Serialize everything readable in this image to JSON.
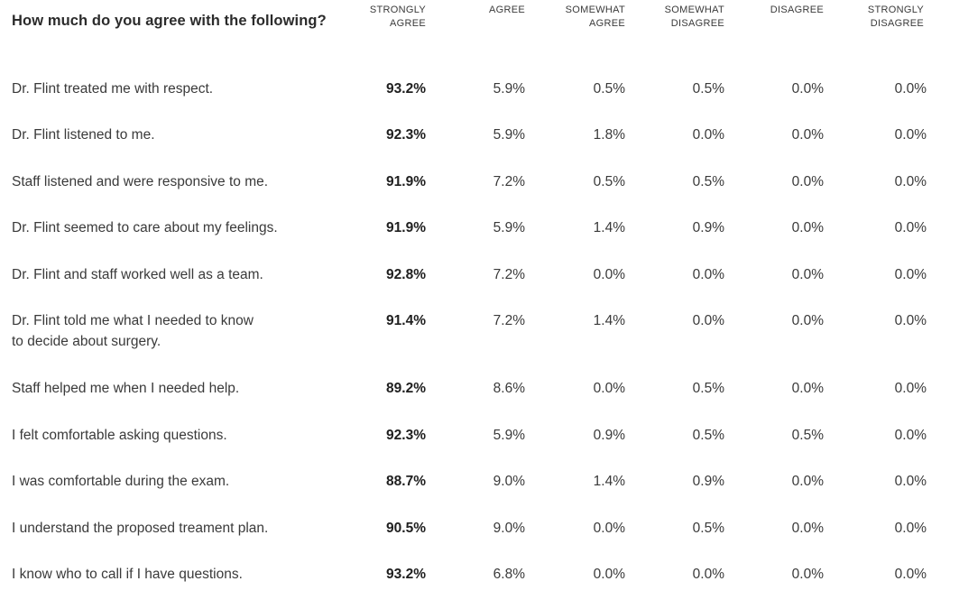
{
  "question": "How much do you agree with the following?",
  "columns": [
    "STRONGLY\nAGREE",
    "AGREE",
    "SOMEWHAT\nAGREE",
    "SOMEWHAT\nDISAGREE",
    "DISAGREE",
    "STRONGLY\nDISAGREE"
  ],
  "rows": [
    {
      "statement": "Dr. Flint treated me with respect.",
      "values": [
        "93.2%",
        "5.9%",
        "0.5%",
        "0.5%",
        "0.0%",
        "0.0%"
      ]
    },
    {
      "statement": "Dr. Flint listened to me.",
      "values": [
        "92.3%",
        "5.9%",
        "1.8%",
        "0.0%",
        "0.0%",
        "0.0%"
      ]
    },
    {
      "statement": "Staff listened and were responsive to me.",
      "values": [
        "91.9%",
        "7.2%",
        "0.5%",
        "0.5%",
        "0.0%",
        "0.0%"
      ]
    },
    {
      "statement": "Dr. Flint seemed to care about my feelings.",
      "values": [
        "91.9%",
        "5.9%",
        "1.4%",
        "0.9%",
        "0.0%",
        "0.0%"
      ]
    },
    {
      "statement": "Dr. Flint and staff worked well as a team.",
      "values": [
        "92.8%",
        "7.2%",
        "0.0%",
        "0.0%",
        "0.0%",
        "0.0%"
      ]
    },
    {
      "statement": "Dr. Flint told me what I needed to know\nto decide about surgery.",
      "values": [
        "91.4%",
        "7.2%",
        "1.4%",
        "0.0%",
        "0.0%",
        "0.0%"
      ]
    },
    {
      "statement": "Staff helped me when I needed help.",
      "values": [
        "89.2%",
        "8.6%",
        "0.0%",
        "0.5%",
        "0.0%",
        "0.0%"
      ]
    },
    {
      "statement": "I felt comfortable asking questions.",
      "values": [
        "92.3%",
        "5.9%",
        "0.9%",
        "0.5%",
        "0.5%",
        "0.0%"
      ]
    },
    {
      "statement": "I was comfortable during the exam.",
      "values": [
        "88.7%",
        "9.0%",
        "1.4%",
        "0.9%",
        "0.0%",
        "0.0%"
      ]
    },
    {
      "statement": "I understand the proposed treament plan.",
      "values": [
        "90.5%",
        "9.0%",
        "0.0%",
        "0.5%",
        "0.0%",
        "0.0%"
      ]
    },
    {
      "statement": "I know who to call if I have questions.",
      "values": [
        "93.2%",
        "6.8%",
        "0.0%",
        "0.0%",
        "0.0%",
        "0.0%"
      ]
    }
  ]
}
